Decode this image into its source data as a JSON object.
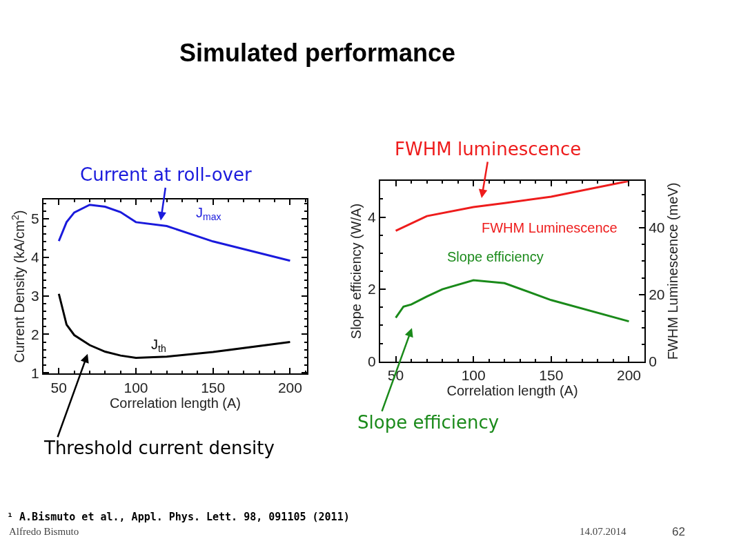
{
  "chart_data": [
    {
      "type": "line",
      "title": "Simulated performance",
      "xlabel": "Correlation length (A)",
      "ylabel": "Current Density (kA/cm$^{2}$)",
      "xlim": [
        40,
        211
      ],
      "ylim": [
        0.98,
        5.5
      ],
      "xticks": [
        50,
        100,
        150,
        200
      ],
      "yticks": [
        1,
        2,
        3,
        4,
        5
      ],
      "grid": false,
      "marker": "none",
      "line_style": "solid",
      "series": [
        {
          "name": "J$_{max}$",
          "color": "#1a1adc",
          "x": [
            50,
            55,
            60,
            70,
            80,
            90,
            100,
            120,
            150,
            200
          ],
          "values": [
            4.42,
            4.91,
            5.16,
            5.36,
            5.31,
            5.17,
            4.91,
            4.81,
            4.41,
            3.91
          ]
        },
        {
          "name": "J$_{th}$",
          "color": "#000000",
          "x": [
            50,
            55,
            60,
            70,
            80,
            90,
            100,
            120,
            150,
            200
          ],
          "values": [
            3.05,
            2.25,
            1.98,
            1.72,
            1.55,
            1.45,
            1.39,
            1.42,
            1.54,
            1.8
          ]
        }
      ],
      "annotations": [
        "Current at roll-over",
        "Threshold current density",
        "¹ A.Bismuto et al., Appl. Phys. Lett. 98, 091105 (2011)",
        "Alfredo Bismuto",
        "14.07.2014",
        "62"
      ]
    },
    {
      "type": "line",
      "xlabel": "Correlation length (A)",
      "ylabel": "Slope efficiency (W/A)",
      "y2label": "FWHM Luminescence (meV)",
      "xlim": [
        40,
        210
      ],
      "ylim": [
        0,
        5
      ],
      "y2lim": [
        0,
        54
      ],
      "xticks": [
        50,
        100,
        150,
        200
      ],
      "yticks": [
        0,
        2,
        4
      ],
      "y2ticks": [
        0,
        20,
        40
      ],
      "grid": false,
      "marker": "none",
      "line_style": "solid",
      "series": [
        {
          "name": "FWHM Luminescence",
          "color": "#ee1c1c",
          "axis": "y2",
          "x": [
            50,
            70,
            100,
            120,
            150,
            200
          ],
          "values": [
            39.1,
            43.5,
            46.2,
            47.4,
            49.3,
            54
          ]
        },
        {
          "name": "Slope efficiency",
          "color": "#1a8a1a",
          "x": [
            50,
            55,
            60,
            70,
            80,
            100,
            120,
            150,
            200
          ],
          "values": [
            1.21,
            1.52,
            1.58,
            1.8,
            2.0,
            2.25,
            2.17,
            1.7,
            1.11
          ]
        }
      ],
      "annotations": [
        "FWHM luminescence",
        "Slope efficiency"
      ]
    }
  ]
}
